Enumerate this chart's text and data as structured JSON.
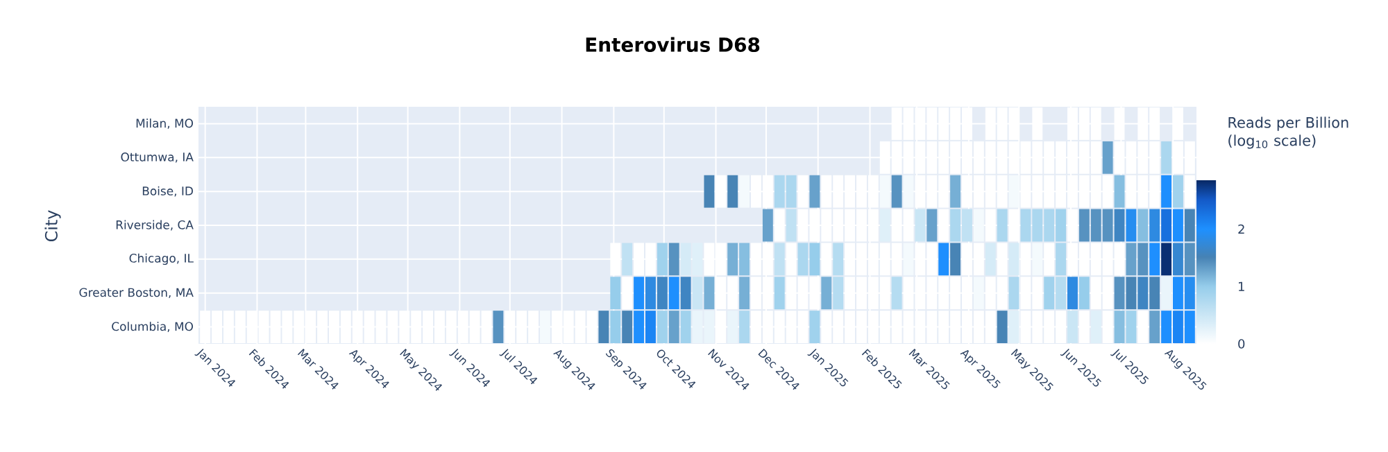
{
  "chart_data": {
    "type": "heatmap",
    "title": "Enterovirus D68",
    "ylabel": "City",
    "clabel": "Reads per Billion (log$_{10}$ scale)",
    "x": [
      "2024-01-01",
      "2024-01-08",
      "2024-01-15",
      "2024-01-22",
      "2024-01-29",
      "2024-02-05",
      "2024-02-12",
      "2024-02-19",
      "2024-02-26",
      "2024-03-04",
      "2024-03-11",
      "2024-03-18",
      "2024-03-25",
      "2024-04-01",
      "2024-04-08",
      "2024-04-15",
      "2024-04-22",
      "2024-04-29",
      "2024-05-06",
      "2024-05-13",
      "2024-05-20",
      "2024-05-27",
      "2024-06-03",
      "2024-06-10",
      "2024-06-17",
      "2024-06-24",
      "2024-07-01",
      "2024-07-08",
      "2024-07-15",
      "2024-07-22",
      "2024-07-29",
      "2024-08-05",
      "2024-08-12",
      "2024-08-19",
      "2024-08-26",
      "2024-09-02",
      "2024-09-09",
      "2024-09-16",
      "2024-09-23",
      "2024-09-30",
      "2024-10-07",
      "2024-10-14",
      "2024-10-21",
      "2024-10-28",
      "2024-11-04",
      "2024-11-11",
      "2024-11-18",
      "2024-11-25",
      "2024-12-02",
      "2024-12-09",
      "2024-12-16",
      "2024-12-23",
      "2024-12-30",
      "2025-01-06",
      "2025-01-13",
      "2025-01-20",
      "2025-01-27",
      "2025-02-03",
      "2025-02-10",
      "2025-02-17",
      "2025-02-24",
      "2025-03-03",
      "2025-03-10",
      "2025-03-17",
      "2025-03-24",
      "2025-03-31",
      "2025-04-07",
      "2025-04-14",
      "2025-04-21",
      "2025-04-28",
      "2025-05-05",
      "2025-05-12",
      "2025-05-19",
      "2025-05-26",
      "2025-06-02",
      "2025-06-09",
      "2025-06-16",
      "2025-06-23",
      "2025-06-30",
      "2025-07-07",
      "2025-07-14",
      "2025-07-21",
      "2025-07-28",
      "2025-08-04",
      "2025-08-11"
    ],
    "xlim": [
      "2023-12-28",
      "2025-08-15"
    ],
    "xticks": [
      {
        "value": "2024-01-01",
        "label": "Jan 2024"
      },
      {
        "value": "2024-02-01",
        "label": "Feb 2024"
      },
      {
        "value": "2024-03-01",
        "label": "Mar 2024"
      },
      {
        "value": "2024-04-01",
        "label": "Apr 2024"
      },
      {
        "value": "2024-05-01",
        "label": "May 2024"
      },
      {
        "value": "2024-06-01",
        "label": "Jun 2024"
      },
      {
        "value": "2024-07-01",
        "label": "Jul 2024"
      },
      {
        "value": "2024-08-01",
        "label": "Aug 2024"
      },
      {
        "value": "2024-09-01",
        "label": "Sep 2024"
      },
      {
        "value": "2024-10-01",
        "label": "Oct 2024"
      },
      {
        "value": "2024-11-01",
        "label": "Nov 2024"
      },
      {
        "value": "2024-12-01",
        "label": "Dec 2024"
      },
      {
        "value": "2025-01-01",
        "label": "Jan 2025"
      },
      {
        "value": "2025-02-01",
        "label": "Feb 2025"
      },
      {
        "value": "2025-03-01",
        "label": "Mar 2025"
      },
      {
        "value": "2025-04-01",
        "label": "Apr 2025"
      },
      {
        "value": "2025-05-01",
        "label": "May 2025"
      },
      {
        "value": "2025-06-01",
        "label": "Jun 2025"
      },
      {
        "value": "2025-07-01",
        "label": "Jul 2025"
      },
      {
        "value": "2025-08-01",
        "label": "Aug 2025"
      }
    ],
    "y_categories": [
      "Milan, MO",
      "Ottumwa, IA",
      "Boise, ID",
      "Riverside, CA",
      "Chicago, IL",
      "Greater Boston, MA",
      "Columbia, MO"
    ],
    "cells": [
      [
        null,
        null,
        null,
        null,
        null,
        null,
        null,
        null,
        null,
        null,
        null,
        null,
        null,
        null,
        null,
        null,
        null,
        null,
        null,
        null,
        null,
        null,
        null,
        null,
        null,
        null,
        null,
        null,
        null,
        null,
        null,
        null,
        null,
        null,
        null,
        null,
        null,
        null,
        null,
        null,
        null,
        null,
        null,
        null,
        null,
        null,
        null,
        null,
        null,
        null,
        null,
        null,
        null,
        null,
        null,
        null,
        null,
        null,
        null,
        0,
        0,
        0,
        0,
        0,
        0,
        0,
        null,
        0,
        0,
        0,
        null,
        0,
        null,
        null,
        0,
        0,
        0,
        null,
        0,
        null,
        0,
        0,
        null,
        0,
        null
      ],
      [
        null,
        null,
        null,
        null,
        null,
        null,
        null,
        null,
        null,
        null,
        null,
        null,
        null,
        null,
        null,
        null,
        null,
        null,
        null,
        null,
        null,
        null,
        null,
        null,
        null,
        null,
        null,
        null,
        null,
        null,
        null,
        null,
        null,
        null,
        null,
        null,
        null,
        null,
        null,
        null,
        null,
        null,
        null,
        null,
        null,
        null,
        null,
        null,
        null,
        null,
        null,
        null,
        null,
        null,
        null,
        null,
        null,
        null,
        0,
        0,
        0,
        0,
        0,
        0,
        0,
        0,
        0,
        0,
        0,
        0,
        0,
        0,
        0,
        0,
        0,
        0,
        0,
        1.3,
        0,
        0,
        0,
        0,
        0.8,
        0,
        0
      ],
      [
        null,
        null,
        null,
        null,
        null,
        null,
        null,
        null,
        null,
        null,
        null,
        null,
        null,
        null,
        null,
        null,
        null,
        null,
        null,
        null,
        null,
        null,
        null,
        null,
        null,
        null,
        null,
        null,
        null,
        null,
        null,
        null,
        null,
        null,
        null,
        null,
        null,
        null,
        null,
        null,
        null,
        null,
        null,
        1.5,
        0,
        1.5,
        0.1,
        0,
        0,
        0.8,
        0.8,
        0,
        1.3,
        0,
        0,
        0,
        0,
        0,
        0.1,
        1.4,
        0.1,
        0,
        0,
        0,
        1.2,
        0,
        0,
        0,
        0,
        0.1,
        0,
        0,
        0,
        0,
        0,
        0,
        0,
        0,
        1.1,
        0,
        0,
        0,
        2.0,
        0.9,
        0
      ],
      [
        null,
        null,
        null,
        null,
        null,
        null,
        null,
        null,
        null,
        null,
        null,
        null,
        null,
        null,
        null,
        null,
        null,
        null,
        null,
        null,
        null,
        null,
        null,
        null,
        null,
        null,
        null,
        null,
        null,
        null,
        null,
        null,
        null,
        null,
        null,
        null,
        null,
        null,
        null,
        null,
        null,
        null,
        null,
        null,
        null,
        null,
        null,
        null,
        1.3,
        0,
        0.6,
        0,
        0,
        0,
        0,
        0,
        0,
        0,
        0.3,
        0,
        0,
        0.5,
        1.3,
        0,
        0.8,
        0.6,
        0.1,
        0,
        0.8,
        0,
        0.8,
        0.8,
        0.8,
        0.9,
        0,
        1.4,
        1.4,
        1.4,
        1.6,
        1.9,
        1.1,
        1.8,
        2.3,
        2.0,
        1.5
      ],
      [
        null,
        null,
        null,
        null,
        null,
        null,
        null,
        null,
        null,
        null,
        null,
        null,
        null,
        null,
        null,
        null,
        null,
        null,
        null,
        null,
        null,
        null,
        null,
        null,
        null,
        null,
        null,
        null,
        null,
        null,
        null,
        null,
        null,
        null,
        null,
        0,
        0.6,
        0,
        0,
        0.9,
        1.4,
        0.4,
        0.3,
        0,
        0,
        1.2,
        1.1,
        0,
        0,
        0.6,
        0,
        0.8,
        1.0,
        0,
        0.7,
        0,
        0,
        0,
        0,
        0,
        0.1,
        0,
        0,
        2.0,
        1.5,
        0,
        0,
        0.4,
        0,
        0.4,
        0,
        0.1,
        0,
        0.8,
        0,
        0,
        0,
        0,
        0,
        1.3,
        1.4,
        2.0,
        2.8,
        1.7,
        1.4
      ],
      [
        null,
        null,
        null,
        null,
        null,
        null,
        null,
        null,
        null,
        null,
        null,
        null,
        null,
        null,
        null,
        null,
        null,
        null,
        null,
        null,
        null,
        null,
        null,
        null,
        null,
        null,
        null,
        null,
        null,
        null,
        null,
        null,
        null,
        null,
        null,
        1.0,
        0,
        2.0,
        1.8,
        1.6,
        2.0,
        1.6,
        0.5,
        1.2,
        0,
        0,
        1.2,
        0,
        0,
        0.9,
        0,
        0,
        0,
        1.2,
        0.7,
        0,
        0,
        0,
        0,
        0.7,
        0,
        0,
        0,
        0,
        0,
        0,
        0.1,
        0,
        0,
        0.8,
        0,
        0,
        0.9,
        0.7,
        1.8,
        1.0,
        0,
        0,
        1.4,
        1.5,
        1.6,
        1.5,
        0.2,
        2.0,
        1.9
      ],
      [
        0,
        0,
        0,
        0,
        0,
        0,
        0,
        0,
        0,
        0,
        0,
        0,
        0,
        0,
        0,
        0,
        0,
        0,
        0,
        0,
        0,
        0,
        0,
        0,
        0,
        1.4,
        0,
        0,
        0,
        0.1,
        0,
        0,
        0,
        0,
        1.5,
        1.0,
        1.5,
        2.0,
        2.1,
        0.9,
        1.3,
        0.9,
        0.2,
        0.2,
        0,
        0.2,
        0.8,
        0,
        0,
        0,
        0,
        0,
        0.9,
        0,
        0,
        0,
        0,
        0,
        0,
        0,
        0,
        0,
        0,
        0,
        0,
        0,
        0,
        0,
        1.5,
        0.3,
        0,
        0,
        0,
        0,
        0.5,
        0,
        0.3,
        0,
        1.1,
        0.9,
        0,
        1.3,
        2.0,
        2.1,
        2.0
      ]
    ],
    "clim": [
      0,
      2.85
    ],
    "cticks": [
      0,
      1,
      2
    ],
    "grid": true
  }
}
